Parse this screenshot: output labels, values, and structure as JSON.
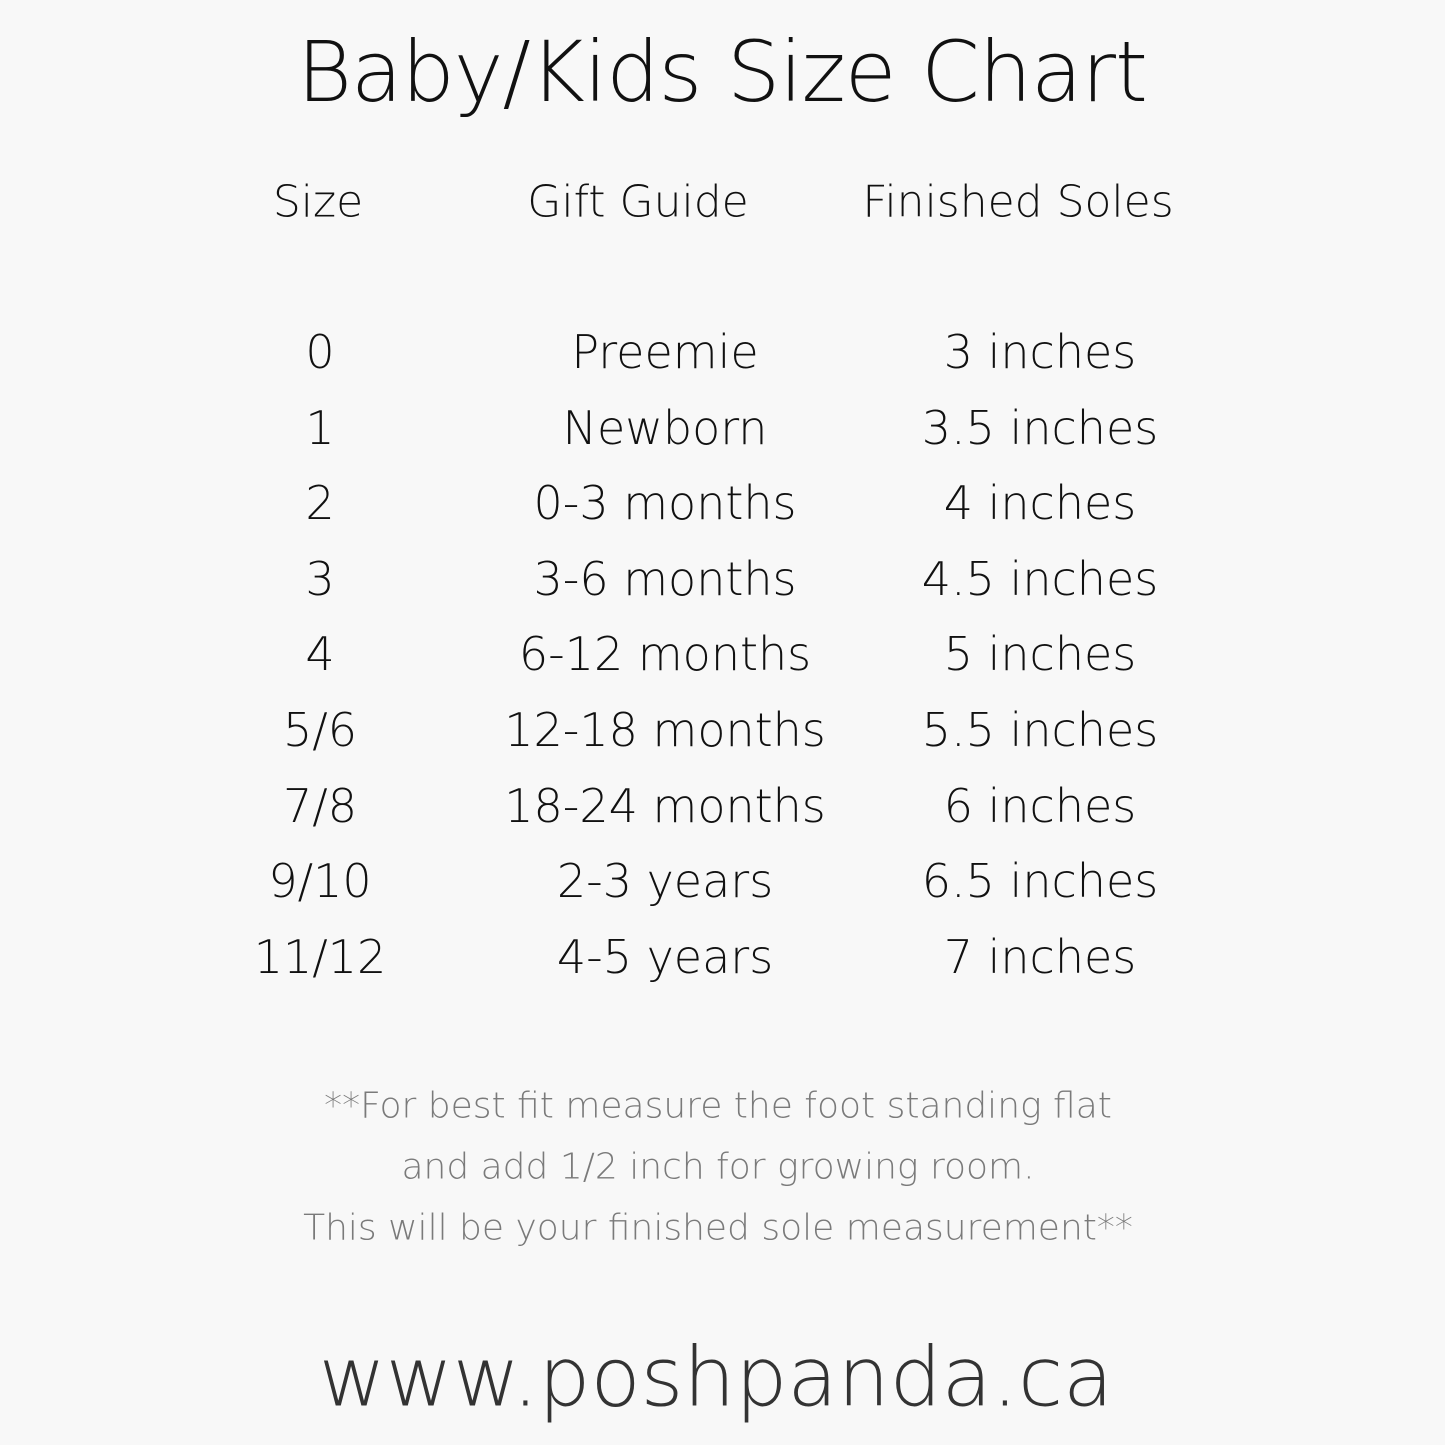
{
  "title": "Baby/Kids Size Chart",
  "headers": [
    "Size",
    "Gift Guide",
    "Finished Soles"
  ],
  "rows": [
    [
      "0",
      "Preemie",
      "3 inches"
    ],
    [
      "1",
      "Newborn",
      "3.5 inches"
    ],
    [
      "2",
      "0-3 months",
      "4 inches"
    ],
    [
      "3",
      "3-6 months",
      "4.5 inches"
    ],
    [
      "4",
      "6-12 months",
      "5 inches"
    ],
    [
      "5/6",
      "12-18 months",
      "5.5 inches"
    ],
    [
      "7/8",
      "18-24 months",
      "6 inches"
    ],
    [
      "9/10",
      "2-3 years",
      "6.5 inches"
    ],
    [
      "11/12",
      "4-5 years",
      "7 inches"
    ]
  ],
  "note": [
    "**For best fit measure the foot standing flat",
    "and add 1/2 inch for growing room.",
    "This will be your finished sole measurement**"
  ],
  "website": "www.poshpanda.ca",
  "colors": {
    "background": "#f8f8f8",
    "text": "#111111",
    "note": "#7a7a7a",
    "website": "#333333"
  }
}
